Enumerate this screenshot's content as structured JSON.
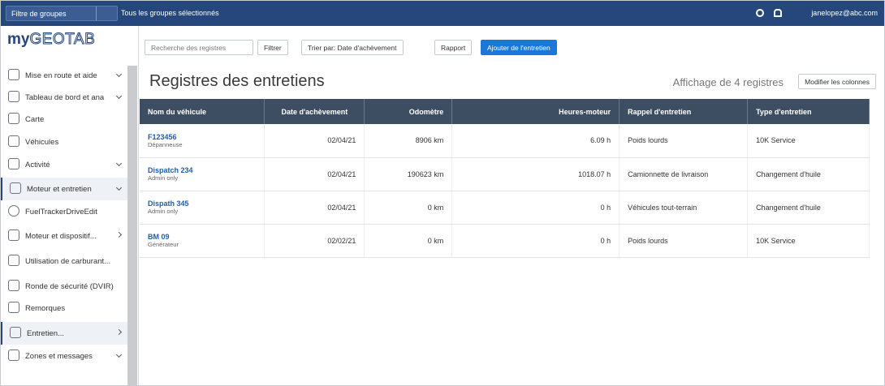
{
  "topbar": {
    "group_filter": "Filtre de groupes",
    "groups_selected": "Tous les groupes sélectionnés",
    "user": "janelopez@abc.com"
  },
  "sidebar": {
    "logo_prefix": "my",
    "logo_name": "GEOTAB",
    "items": [
      "Mise en route et aide",
      "Tableau de bord et ana",
      "Carte",
      "Véhicules",
      "Activité",
      "Moteur et entretien",
      "FuelTrackerDriveEdit",
      "Moteur et dispositif...",
      "Utilisation de carburant...",
      "Ronde de sécurité (DVIR)",
      "Remorques",
      "Entretien...",
      "Zones et messages"
    ]
  },
  "toolbar": {
    "search_placeholder": "Recherche des registres",
    "filter": "Filtrer",
    "sort_label": "Trier par:",
    "sort_value": "Date d'achèvement",
    "report": "Rapport",
    "add": "Ajouter de l'entretien"
  },
  "page": {
    "title": "Registres des entretiens",
    "count_text": "Affichage de 4 registres",
    "columns_button": "Modifier les colonnes"
  },
  "table": {
    "headers": [
      "Nom du véhicule",
      "Date d'achèvement",
      "Odomètre",
      "Heures-moteur",
      "Rappel d'entretien",
      "Type d'entretien"
    ],
    "rows": [
      {
        "name": "F123456",
        "subtitle": "Dépanneuse",
        "date": "02/04/21",
        "odometer": "8906 km",
        "hours": "6.09 h",
        "reminder": "Poids lourds",
        "type": "10K Service"
      },
      {
        "name": "Dispatch 234",
        "subtitle": "Admin only",
        "date": "02/04/21",
        "odometer": "190623 km",
        "hours": "1018.07 h",
        "reminder": "Camionnette de livraison",
        "type": "Changement d'huile"
      },
      {
        "name": "Dispath 345",
        "subtitle": "Admin only",
        "date": "02/04/21",
        "odometer": "0 km",
        "hours": "0 h",
        "reminder": "Véhicules tout-terrain",
        "type": "Changement d'huile"
      },
      {
        "name": "BM 09",
        "subtitle": "Générateur",
        "date": "02/02/21",
        "odometer": "0 km",
        "hours": "0 h",
        "reminder": "Poids lourds",
        "type": "10K Service"
      }
    ]
  }
}
